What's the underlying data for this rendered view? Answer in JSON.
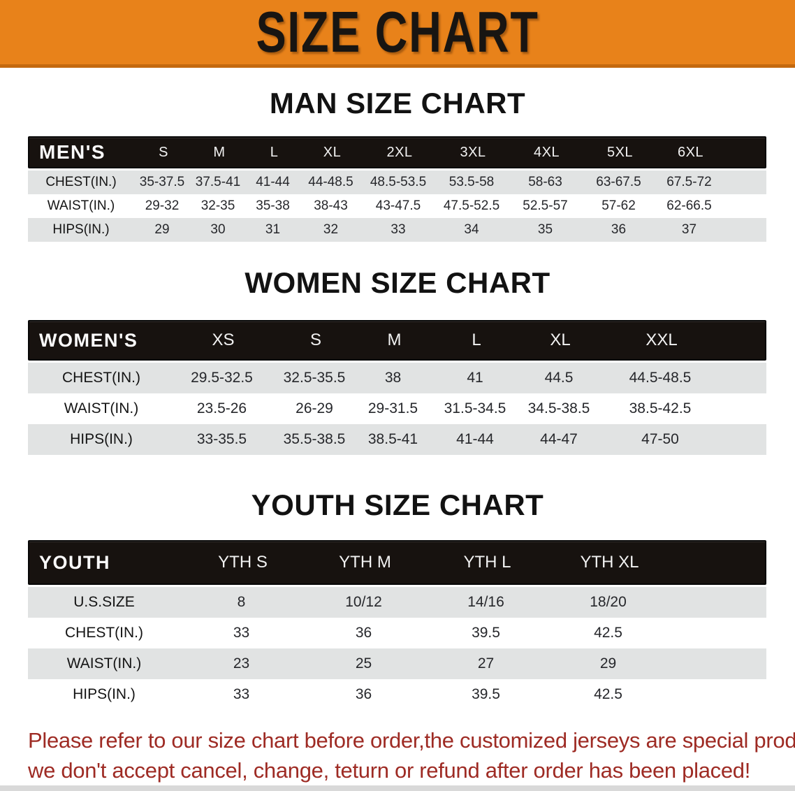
{
  "banner": {
    "title": "SIZE CHART"
  },
  "sections": [
    {
      "heading": "MAN SIZE CHART",
      "group_label": "MEN'S",
      "columns": [
        "S",
        "M",
        "L",
        "XL",
        "2XL",
        "3XL",
        "4XL",
        "5XL",
        "6XL"
      ],
      "rows": [
        {
          "label": "CHEST(IN.)",
          "values": [
            "35-37.5",
            "37.5-41",
            "41-44",
            "44-48.5",
            "48.5-53.5",
            "53.5-58",
            "58-63",
            "63-67.5",
            "67.5-72"
          ]
        },
        {
          "label": "WAIST(IN.)",
          "values": [
            "29-32",
            "32-35",
            "35-38",
            "38-43",
            "43-47.5",
            "47.5-52.5",
            "52.5-57",
            "57-62",
            "62-66.5"
          ]
        },
        {
          "label": "HIPS(IN.)",
          "values": [
            "29",
            "30",
            "31",
            "32",
            "33",
            "34",
            "35",
            "36",
            "37"
          ]
        }
      ]
    },
    {
      "heading": "WOMEN SIZE CHART",
      "group_label": "WOMEN'S",
      "columns": [
        "XS",
        "S",
        "M",
        "L",
        "XL",
        "XXL"
      ],
      "rows": [
        {
          "label": "CHEST(IN.)",
          "values": [
            "29.5-32.5",
            "32.5-35.5",
            "38",
            "41",
            "44.5",
            "44.5-48.5"
          ]
        },
        {
          "label": "WAIST(IN.)",
          "values": [
            "23.5-26",
            "26-29",
            "29-31.5",
            "31.5-34.5",
            "34.5-38.5",
            "38.5-42.5"
          ]
        },
        {
          "label": "HIPS(IN.)",
          "values": [
            "33-35.5",
            "35.5-38.5",
            "38.5-41",
            "41-44",
            "44-47",
            "47-50"
          ]
        }
      ]
    },
    {
      "heading": "YOUTH SIZE CHART",
      "group_label": "YOUTH",
      "columns": [
        "YTH S",
        "YTH M",
        "YTH L",
        "YTH XL"
      ],
      "rows": [
        {
          "label": "U.S.SIZE",
          "values": [
            "8",
            "10/12",
            "14/16",
            "18/20"
          ]
        },
        {
          "label": "CHEST(IN.)",
          "values": [
            "33",
            "36",
            "39.5",
            "42.5"
          ]
        },
        {
          "label": "WAIST(IN.)",
          "values": [
            "23",
            "25",
            "27",
            "29"
          ]
        },
        {
          "label": "HIPS(IN.)",
          "values": [
            "33",
            "36",
            "39.5",
            "42.5"
          ]
        }
      ]
    }
  ],
  "disclaimer": {
    "line1": "Please refer to our size chart before order,the customized jerseys are special products,",
    "line2": "we don't accept cancel, change, teturn or refund after order has been placed!"
  },
  "colors": {
    "banner_bg": "#E8821A",
    "banner_edge": "#C4690E",
    "header_bg": "#17120F",
    "row_stripe": "#E1E3E3",
    "disclaimer_red": "#9E2B24"
  }
}
